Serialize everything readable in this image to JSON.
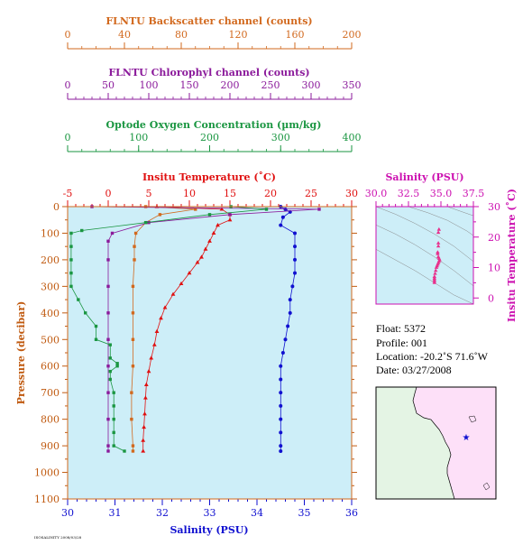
{
  "colors": {
    "backscatter": "#d2691e",
    "chlorophyll": "#8b1a9b",
    "oxygen": "#1a9641",
    "temperature": "#e01010",
    "salinity": "#1010d0",
    "pressure_axis": "#c05a10",
    "ts_axis": "#cc10b0",
    "plot_bg": "#cdeef8",
    "map_ocean": "#fde0f8",
    "map_land": "#e4f4e4"
  },
  "header_axes": [
    {
      "key": "backscatter",
      "title": "FLNTU Backscatter channel (counts)",
      "ticks": [
        "0",
        "40",
        "80",
        "120",
        "160",
        "200"
      ]
    },
    {
      "key": "chlorophyll",
      "title": "FLNTU Chlorophyl channel (counts)",
      "ticks": [
        "0",
        "50",
        "100",
        "150",
        "200",
        "250",
        "300",
        "350"
      ]
    },
    {
      "key": "oxygen",
      "title": "Optode Oxygen Concentration (µm/kg)",
      "ticks": [
        "0",
        "100",
        "200",
        "300",
        "400"
      ]
    }
  ],
  "main_axes": {
    "temp_title": "Insitu Temperature (˚C)",
    "temp_ticks": [
      "-5",
      "0",
      "5",
      "10",
      "15",
      "20",
      "25",
      "30"
    ],
    "salinity_title": "Salinity (PSU)",
    "salinity_ticks": [
      "30",
      "31",
      "32",
      "33",
      "34",
      "35",
      "36"
    ],
    "pressure_title": "Pressure (decibar)",
    "pressure_ticks": [
      "0",
      "100",
      "200",
      "300",
      "400",
      "500",
      "600",
      "700",
      "800",
      "900",
      "1000",
      "1100"
    ],
    "footer_note": "ISOSALINITY 2008/03/28"
  },
  "ts_axes": {
    "salinity_title": "Salinity (PSU)",
    "salinity_ticks": [
      "30.0",
      "32.5",
      "35.0",
      "37.5"
    ],
    "temp_title": "Insitu Temperature (˚C)",
    "temp_ticks": [
      "0",
      "10",
      "20",
      "30"
    ]
  },
  "info": {
    "float": "Float:  5372",
    "profile": "Profile:  001",
    "location": "Location:  -20.2˚S  71.6˚W",
    "date": "Date:  03/27/2008"
  },
  "map": {
    "marker": "star-icon"
  },
  "chart_data": [
    {
      "type": "line",
      "title": "",
      "xlabel": "Insitu Temperature (˚C)",
      "ylabel": "Pressure (decibar)",
      "xlim": [
        -5,
        30
      ],
      "ylim": [
        1100,
        0
      ],
      "series": [
        {
          "name": "Insitu Temperature (˚C)",
          "points": [
            [
              6,
              0
            ],
            [
              14,
              10
            ],
            [
              15,
              30
            ],
            [
              15,
              50
            ],
            [
              13.5,
              70
            ],
            [
              13,
              100
            ],
            [
              12.5,
              130
            ],
            [
              12,
              160
            ],
            [
              11.5,
              190
            ],
            [
              11,
              210
            ],
            [
              10,
              250
            ],
            [
              9,
              290
            ],
            [
              8,
              330
            ],
            [
              7,
              380
            ],
            [
              6.5,
              420
            ],
            [
              6,
              470
            ],
            [
              5.7,
              520
            ],
            [
              5.3,
              570
            ],
            [
              5,
              620
            ],
            [
              4.7,
              670
            ],
            [
              4.6,
              720
            ],
            [
              4.5,
              780
            ],
            [
              4.4,
              830
            ],
            [
              4.3,
              880
            ],
            [
              4.3,
              920
            ]
          ]
        }
      ]
    },
    {
      "type": "line",
      "xlabel": "Salinity (PSU)",
      "ylabel": "Pressure (decibar)",
      "xlim": [
        30,
        36
      ],
      "ylim": [
        1100,
        0
      ],
      "series": [
        {
          "name": "Salinity (PSU)",
          "points": [
            [
              34.5,
              0
            ],
            [
              34.6,
              10
            ],
            [
              34.7,
              20
            ],
            [
              34.55,
              40
            ],
            [
              34.5,
              70
            ],
            [
              34.8,
              100
            ],
            [
              34.8,
              150
            ],
            [
              34.8,
              200
            ],
            [
              34.8,
              250
            ],
            [
              34.75,
              300
            ],
            [
              34.7,
              350
            ],
            [
              34.7,
              400
            ],
            [
              34.65,
              450
            ],
            [
              34.6,
              500
            ],
            [
              34.55,
              550
            ],
            [
              34.5,
              600
            ],
            [
              34.5,
              650
            ],
            [
              34.5,
              700
            ],
            [
              34.5,
              750
            ],
            [
              34.5,
              800
            ],
            [
              34.5,
              850
            ],
            [
              34.5,
              900
            ],
            [
              34.5,
              920
            ]
          ]
        }
      ]
    },
    {
      "type": "line",
      "xlabel": "FLNTU Backscatter channel (counts)",
      "ylabel": "Pressure (decibar)",
      "xlim": [
        0,
        200
      ],
      "ylim": [
        1100,
        0
      ],
      "series": [
        {
          "name": "FLNTU Backscatter channel (counts)",
          "points": [
            [
              55,
              0
            ],
            [
              90,
              10
            ],
            [
              65,
              30
            ],
            [
              55,
              60
            ],
            [
              48,
              100
            ],
            [
              47,
              150
            ],
            [
              47,
              200
            ],
            [
              46,
              300
            ],
            [
              46,
              400
            ],
            [
              46,
              500
            ],
            [
              46,
              600
            ],
            [
              45,
              700
            ],
            [
              45,
              800
            ],
            [
              46,
              900
            ],
            [
              46,
              920
            ]
          ]
        }
      ]
    },
    {
      "type": "line",
      "xlabel": "FLNTU Chlorophyl channel (counts)",
      "ylabel": "Pressure (decibar)",
      "xlim": [
        0,
        350
      ],
      "ylim": [
        1100,
        0
      ],
      "series": [
        {
          "name": "FLNTU Chlorophyl channel (counts)",
          "points": [
            [
              30,
              0
            ],
            [
              310,
              10
            ],
            [
              200,
              30
            ],
            [
              100,
              60
            ],
            [
              55,
              100
            ],
            [
              50,
              130
            ],
            [
              50,
              200
            ],
            [
              50,
              300
            ],
            [
              50,
              400
            ],
            [
              50,
              500
            ],
            [
              50,
              600
            ],
            [
              50,
              700
            ],
            [
              50,
              800
            ],
            [
              50,
              900
            ],
            [
              50,
              920
            ]
          ]
        }
      ]
    },
    {
      "type": "line",
      "xlabel": "Optode Oxygen Concentration (µm/kg)",
      "ylabel": "Pressure (decibar)",
      "xlim": [
        0,
        400
      ],
      "ylim": [
        1100,
        0
      ],
      "series": [
        {
          "name": "Optode Oxygen Concentration (µm/kg)",
          "points": [
            [
              230,
              0
            ],
            [
              280,
              10
            ],
            [
              200,
              30
            ],
            [
              110,
              60
            ],
            [
              20,
              90
            ],
            [
              5,
              100
            ],
            [
              5,
              150
            ],
            [
              5,
              200
            ],
            [
              5,
              250
            ],
            [
              5,
              300
            ],
            [
              15,
              350
            ],
            [
              25,
              400
            ],
            [
              40,
              450
            ],
            [
              40,
              500
            ],
            [
              60,
              520
            ],
            [
              60,
              570
            ],
            [
              70,
              590
            ],
            [
              70,
              600
            ],
            [
              60,
              620
            ],
            [
              60,
              650
            ],
            [
              65,
              700
            ],
            [
              65,
              750
            ],
            [
              65,
              800
            ],
            [
              65,
              850
            ],
            [
              65,
              900
            ],
            [
              80,
              920
            ]
          ]
        }
      ]
    },
    {
      "type": "scatter",
      "xlabel": "Salinity (PSU)",
      "ylabel": "Insitu Temperature (˚C)",
      "xlim": [
        30,
        37.5
      ],
      "ylim": [
        -2,
        30
      ],
      "series": [
        {
          "name": "T-S",
          "points": [
            [
              34.85,
              22.5
            ],
            [
              34.8,
              21.5
            ],
            [
              34.8,
              18
            ],
            [
              34.8,
              17
            ],
            [
              34.75,
              15
            ],
            [
              34.75,
              14.5
            ],
            [
              34.8,
              13.5
            ],
            [
              34.85,
              13
            ],
            [
              34.9,
              12.5
            ],
            [
              34.85,
              12
            ],
            [
              34.8,
              11.5
            ],
            [
              34.75,
              11
            ],
            [
              34.7,
              10.5
            ],
            [
              34.65,
              10
            ],
            [
              34.6,
              9
            ],
            [
              34.55,
              8
            ],
            [
              34.5,
              7
            ],
            [
              34.5,
              6.5
            ],
            [
              34.5,
              6
            ],
            [
              34.5,
              5.5
            ],
            [
              34.5,
              5
            ]
          ]
        }
      ]
    }
  ]
}
